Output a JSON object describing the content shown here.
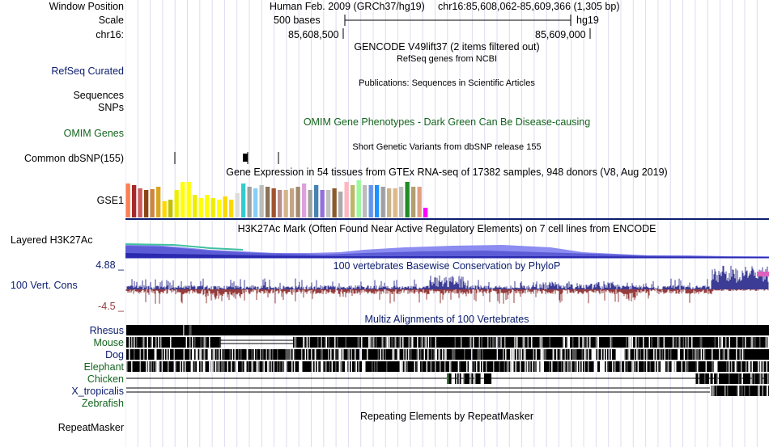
{
  "header": {
    "window_position_label": "Window Position",
    "scale_label": "Scale",
    "chrom_label": "chr16:",
    "assembly_text": "Human Feb. 2009 (GRCh37/hg19)",
    "position_text": "chr16:85,608,062-85,609,366 (1,305 bp)",
    "scale_text": "500 bases",
    "scale_db": "hg19",
    "coord_left": "85,608,500",
    "coord_right": "85,609,000"
  },
  "tracks": {
    "gencode_title": "GENCODE V49lift37 (2 items filtered out)",
    "refseq_label": "RefSeq Curated",
    "refseq_title": "RefSeq genes from NCBI",
    "publications_title": "Publications: Sequences in Scientific Articles",
    "sequences_label": "Sequences",
    "snps_label": "SNPs",
    "omim_label": "OMIM Genes",
    "omim_title": "OMIM Gene Phenotypes - Dark Green Can Be Disease-causing",
    "dbsnp_label": "Common dbSNP(155)",
    "dbsnp_title": "Short Genetic Variants from dbSNP release 155",
    "gtex_title": "Gene Expression in 54 tissues from GTEx RNA-seq of 17382 samples, 948 donors (V8, Aug 2019)",
    "gse_label": "GSE1",
    "h3k27_label": "Layered H3K27Ac",
    "h3k27_title": "H3K27Ac Mark (Often Found Near Active Regulatory Elements) on 7 cell lines from ENCODE",
    "cons_max": "4.88 _",
    "cons_label": "100 Vert. Cons",
    "cons_min": "-4.5 _",
    "cons_title": "100 vertebrates Basewise Conservation by PhyloP",
    "multiz_title": "Multiz Alignments of 100 Vertebrates",
    "species": [
      "Rhesus",
      "Mouse",
      "Dog",
      "Elephant",
      "Chicken",
      "X_tropicalis",
      "Zebrafish"
    ],
    "repeatmasker_label": "RepeatMasker",
    "repeatmasker_title": "Repeating Elements by RepeatMasker"
  },
  "colors": {
    "label_blue": "#0c1d6e",
    "label_green": "#14641e",
    "cons_pos": "#3c3c96",
    "cons_neg": "#963c3c",
    "grid": "#dcdcf0",
    "h3k27_dark": "#2a2ab0",
    "h3k27_light": "#7070e0"
  },
  "gtex": {
    "tissue_colors": [
      "#ff7f50",
      "#a52a2a",
      "#cd5c5c",
      "#8b4513",
      "#cd853f",
      "#daa520",
      "#ffd700",
      "#c0c000",
      "#eeee00",
      "#ffff00",
      "#ffff00",
      "#eeee00",
      "#ffff00",
      "#ffff00",
      "#eeee00",
      "#ffff00",
      "#ffd700",
      "#ffd700",
      "#dcdcdc",
      "#33cccc",
      "#a0a0a0",
      "#87cefa",
      "#bcbcbc",
      "#8b7355",
      "#a0522d",
      "#bc8f8f",
      "#d2b48c",
      "#c4a484",
      "#a38b6d",
      "#dda0dd",
      "#a0a0a0",
      "#4682b4",
      "#9370db",
      "#c0c0c0",
      "#8b5a2b",
      "#aaaaaa",
      "#ffb6c1",
      "#bdb76b",
      "#98fb98",
      "#bcbcbc",
      "#6495ed",
      "#1e90ff",
      "#a0a0a0",
      "#c8b48c",
      "#deb887",
      "#bfbfbf",
      "#228b22",
      "#b0a070",
      "#e0a080",
      "#ff00ff"
    ],
    "tissue_values": [
      42,
      40,
      36,
      34,
      35,
      38,
      20,
      22,
      34,
      44,
      44,
      28,
      24,
      28,
      24,
      22,
      26,
      22,
      30,
      42,
      38,
      36,
      40,
      38,
      36,
      34,
      34,
      36,
      38,
      42,
      34,
      40,
      34,
      34,
      36,
      32,
      44,
      40,
      46,
      40,
      40,
      40,
      38,
      36,
      36,
      38,
      44,
      38,
      38,
      12
    ]
  },
  "scoring": {
    "gse_scale_max": 50
  }
}
